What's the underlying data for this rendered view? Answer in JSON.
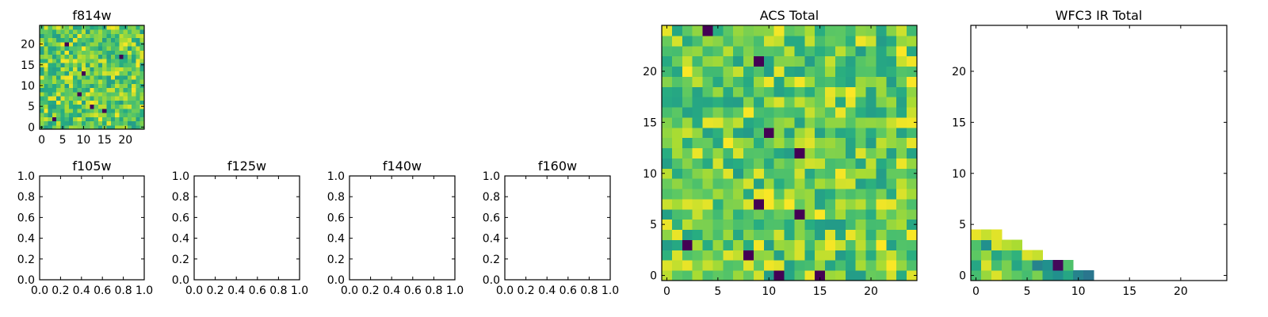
{
  "chart_data": [
    {
      "id": "f814w",
      "type": "heatmap",
      "title": "f814w",
      "xlim": [
        0,
        25
      ],
      "ylim": [
        0,
        25
      ],
      "xticks": [
        0,
        5,
        10,
        15,
        20
      ],
      "yticks": [
        0,
        5,
        10,
        15,
        20
      ],
      "grid_size": [
        25,
        25
      ],
      "value_range": [
        0,
        1
      ],
      "colormap": "viridis",
      "data_description": "25x25 grid, mostly green-yellow values with a few dark pixels"
    },
    {
      "id": "f105w",
      "type": "heatmap",
      "title": "f105w",
      "empty": true,
      "xlim": [
        0,
        1
      ],
      "ylim": [
        0,
        1
      ],
      "xticks": [
        0.0,
        0.2,
        0.4,
        0.6,
        0.8,
        1.0
      ],
      "yticks": [
        0.0,
        0.2,
        0.4,
        0.6,
        0.8,
        1.0
      ]
    },
    {
      "id": "f125w",
      "type": "heatmap",
      "title": "f125w",
      "empty": true,
      "xlim": [
        0,
        1
      ],
      "ylim": [
        0,
        1
      ],
      "xticks": [
        0.0,
        0.2,
        0.4,
        0.6,
        0.8,
        1.0
      ],
      "yticks": [
        0.0,
        0.2,
        0.4,
        0.6,
        0.8,
        1.0
      ]
    },
    {
      "id": "f140w",
      "type": "heatmap",
      "title": "f140w",
      "empty": true,
      "xlim": [
        0,
        1
      ],
      "ylim": [
        0,
        1
      ],
      "xticks": [
        0.0,
        0.2,
        0.4,
        0.6,
        0.8,
        1.0
      ],
      "yticks": [
        0.0,
        0.2,
        0.4,
        0.6,
        0.8,
        1.0
      ]
    },
    {
      "id": "f160w",
      "type": "heatmap",
      "title": "f160w",
      "empty": true,
      "xlim": [
        0,
        1
      ],
      "ylim": [
        0,
        1
      ],
      "xticks": [
        0.0,
        0.2,
        0.4,
        0.6,
        0.8,
        1.0
      ],
      "yticks": [
        0.0,
        0.2,
        0.4,
        0.6,
        0.8,
        1.0
      ]
    },
    {
      "id": "acs-total",
      "type": "heatmap",
      "title": "ACS Total",
      "xlim": [
        0,
        25
      ],
      "ylim": [
        0,
        25
      ],
      "xticks": [
        0,
        5,
        10,
        15,
        20
      ],
      "yticks": [
        0,
        5,
        10,
        15,
        20
      ],
      "grid_size": [
        25,
        25
      ],
      "value_range": [
        0,
        1
      ],
      "colormap": "viridis",
      "dark_cells": [
        [
          9,
          21
        ],
        [
          10,
          14
        ],
        [
          13,
          6
        ],
        [
          9,
          7
        ],
        [
          13,
          12
        ],
        [
          2,
          3
        ],
        [
          8,
          2
        ],
        [
          15,
          0
        ],
        [
          11,
          0
        ],
        [
          4,
          24
        ]
      ],
      "data_description": "25x25 grid mostly green-yellow with scattered dark purple cells"
    },
    {
      "id": "wfc3-ir-total",
      "type": "heatmap",
      "title": "WFC3 IR Total",
      "xlim": [
        0,
        25
      ],
      "ylim": [
        0,
        25
      ],
      "xticks": [
        0,
        5,
        10,
        15,
        20
      ],
      "yticks": [
        0,
        5,
        10,
        15,
        20
      ],
      "grid_size": [
        25,
        25
      ],
      "value_range": [
        0,
        1
      ],
      "colormap": "viridis",
      "filled_cells": [
        [
          0,
          0,
          0.7
        ],
        [
          1,
          0,
          0.85
        ],
        [
          2,
          0,
          0.95
        ],
        [
          3,
          0,
          0.8
        ],
        [
          4,
          0,
          0.75
        ],
        [
          5,
          0,
          0.7
        ],
        [
          6,
          0,
          0.8
        ],
        [
          7,
          0,
          0.55
        ],
        [
          8,
          0,
          0.5
        ],
        [
          9,
          0,
          0.6
        ],
        [
          10,
          0,
          0.45
        ],
        [
          11,
          0,
          0.4
        ],
        [
          0,
          1,
          0.6
        ],
        [
          1,
          1,
          0.95
        ],
        [
          2,
          1,
          0.7
        ],
        [
          3,
          1,
          0.8
        ],
        [
          4,
          1,
          0.6
        ],
        [
          5,
          1,
          0.72
        ],
        [
          6,
          1,
          0.45
        ],
        [
          7,
          1,
          0.5
        ],
        [
          8,
          1,
          0.02
        ],
        [
          9,
          1,
          0.72
        ],
        [
          0,
          2,
          0.75
        ],
        [
          1,
          2,
          0.85
        ],
        [
          2,
          2,
          0.6
        ],
        [
          3,
          2,
          0.7
        ],
        [
          4,
          2,
          0.65
        ],
        [
          5,
          2,
          0.95
        ],
        [
          6,
          2,
          0.92
        ],
        [
          0,
          3,
          0.72
        ],
        [
          1,
          3,
          0.5
        ],
        [
          2,
          3,
          0.95
        ],
        [
          3,
          3,
          0.9
        ],
        [
          4,
          3,
          0.88
        ],
        [
          0,
          4,
          0.97
        ],
        [
          1,
          4,
          0.92
        ],
        [
          2,
          4,
          0.96
        ]
      ]
    }
  ]
}
